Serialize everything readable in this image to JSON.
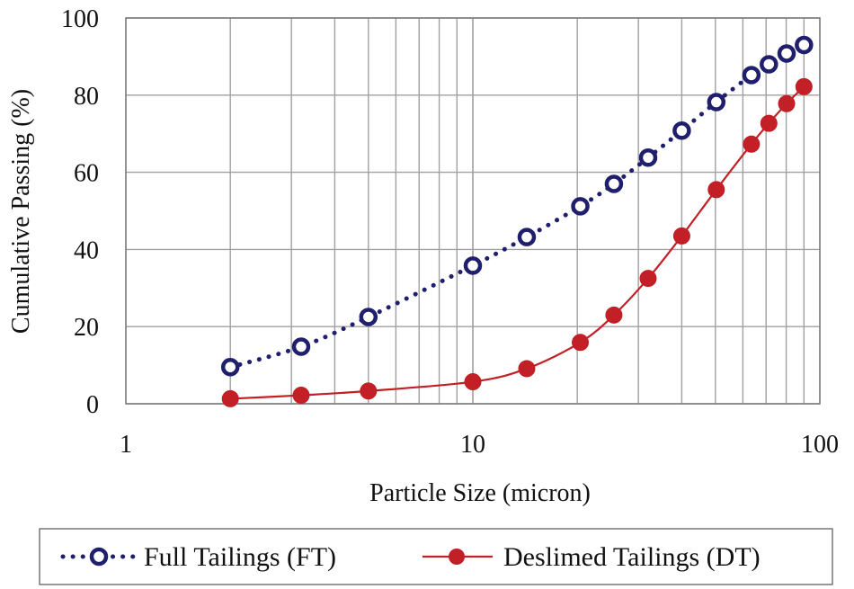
{
  "chart_data": {
    "type": "line",
    "title": "",
    "xlabel": "Particle Size (micron)",
    "ylabel": "Cumulative Passing (%)",
    "xscale": "log",
    "xlim": [
      1,
      100
    ],
    "ylim": [
      0,
      100
    ],
    "xticks": [
      1,
      10,
      100
    ],
    "xtick_labels": [
      "1",
      "10",
      "100"
    ],
    "yticks": [
      0,
      20,
      40,
      60,
      80,
      100
    ],
    "ytick_labels": [
      "0",
      "20",
      "40",
      "60",
      "80",
      "100"
    ],
    "grid": true,
    "legend": "bottom",
    "series": [
      {
        "name": "Full Tailings (FT)",
        "color": "#1f1f6e",
        "style": "dotted",
        "marker": "open-circle",
        "x": [
          2,
          3.2,
          5,
          10,
          14.3,
          20.4,
          25.5,
          32,
          40,
          50.3,
          63.5,
          71.3,
          80.2,
          90
        ],
        "y": [
          9.5,
          14.8,
          22.5,
          35.8,
          43.2,
          51.2,
          57,
          63.8,
          70.8,
          78.2,
          85.2,
          88,
          90.8,
          93
        ]
      },
      {
        "name": "Deslimed Tailings (DT)",
        "color": "#c21f26",
        "style": "solid",
        "marker": "filled-circle",
        "x": [
          2,
          3.2,
          5,
          10,
          14.3,
          20.4,
          25.5,
          32,
          40,
          50.3,
          63.5,
          71.3,
          80.2,
          90
        ],
        "y": [
          1.3,
          2.2,
          3.3,
          5.7,
          9.1,
          15.9,
          23,
          32.5,
          43.5,
          55.5,
          67.3,
          72.7,
          77.8,
          82.2
        ]
      }
    ]
  }
}
